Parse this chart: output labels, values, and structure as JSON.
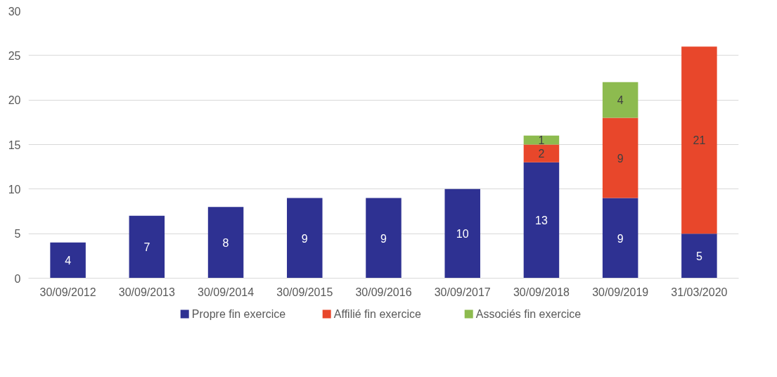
{
  "chart_data": {
    "type": "bar",
    "stacked": true,
    "categories": [
      "30/09/2012",
      "30/09/2013",
      "30/09/2014",
      "30/09/2015",
      "30/09/2016",
      "30/09/2017",
      "30/09/2018",
      "30/09/2019",
      "31/03/2020"
    ],
    "series": [
      {
        "name": "Propre fin exercice",
        "color": "#2e3192",
        "values": [
          4,
          7,
          8,
          9,
          9,
          10,
          13,
          9,
          5
        ]
      },
      {
        "name": "Affilié fin exercice",
        "color": "#e8472b",
        "values": [
          null,
          null,
          null,
          null,
          null,
          null,
          2,
          9,
          21
        ]
      },
      {
        "name": "Associés fin exercice",
        "color": "#8dbb4f",
        "values": [
          null,
          null,
          null,
          null,
          null,
          null,
          1,
          4,
          null
        ]
      }
    ],
    "ylim": [
      0,
      30
    ],
    "yticks": [
      0,
      5,
      10,
      15,
      20,
      25,
      30
    ],
    "grid": "y",
    "legend": "bottom",
    "data_labels": true
  }
}
